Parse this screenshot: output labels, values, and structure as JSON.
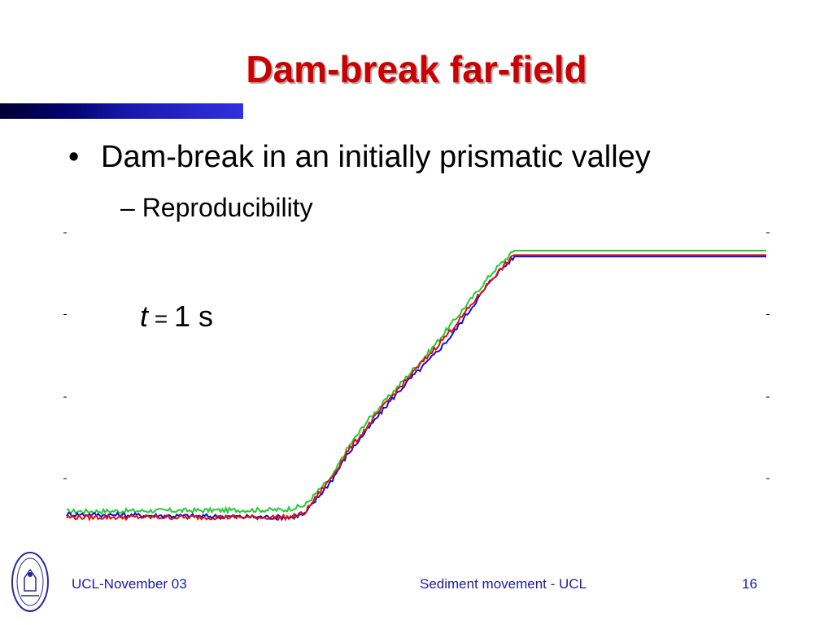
{
  "slide": {
    "title": "Dam-break far-field",
    "bullet_symbol": "•",
    "bullet": "Dam-break in an initially prismatic valley",
    "sub_bullet": "– Reproducibility",
    "time_var": "t",
    "time_eq": " = ",
    "time_value": "1 s"
  },
  "footer": {
    "left": "UCL-November 03",
    "center": "Sediment movement - UCL",
    "page": "16"
  },
  "colors": {
    "title": "#cc0000",
    "footer_text": "#1a1aa8",
    "bar_dark": "#000033",
    "bar_light": "#3030e0"
  },
  "chart_data": {
    "type": "line",
    "title": "",
    "xlabel": "",
    "ylabel": "",
    "grid": false,
    "legend": "none",
    "xlim": [
      0,
      100
    ],
    "ylim": [
      0,
      100
    ],
    "series": [
      {
        "color": "#22cc33",
        "x": [
          0,
          29,
          31,
          34,
          36,
          38,
          40,
          43,
          46,
          49,
          52,
          55,
          58,
          61,
          64,
          100
        ],
        "y": [
          6,
          6.5,
          6.5,
          8,
          13,
          18,
          27,
          37,
          45,
          53,
          61,
          70,
          79,
          88,
          95,
          95
        ],
        "noise": 0.8
      },
      {
        "color": "#1111cc",
        "x": [
          0,
          30,
          32,
          34,
          36,
          38,
          40,
          43,
          46,
          49,
          52,
          55,
          58,
          61,
          64,
          100
        ],
        "y": [
          5,
          4,
          4,
          5,
          11,
          17,
          25,
          34,
          43,
          51,
          58,
          66,
          76,
          86,
          93,
          93
        ],
        "noise": 0.8
      },
      {
        "color": "#dd1111",
        "x": [
          0,
          30,
          32,
          34,
          36,
          38,
          40,
          43,
          46,
          49,
          52,
          55,
          58,
          61,
          64,
          100
        ],
        "y": [
          4,
          4,
          4,
          5.5,
          12,
          18,
          26,
          35,
          44,
          52,
          60,
          68,
          77,
          86,
          93.5,
          93.5
        ],
        "noise": 0.8
      }
    ]
  }
}
